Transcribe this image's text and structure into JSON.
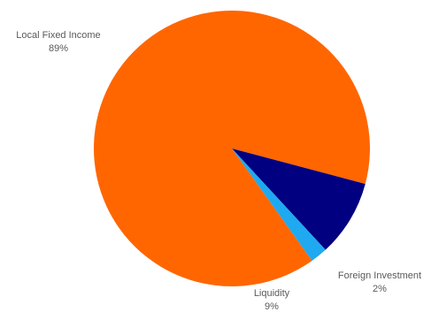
{
  "chart_data": {
    "type": "pie",
    "title": "",
    "slices": [
      {
        "label": "Local Fixed Income",
        "value": 89,
        "value_label": "89%",
        "color": "#FF6600"
      },
      {
        "label": "Liquidity",
        "value": 9,
        "value_label": "9%",
        "color": "#000080"
      },
      {
        "label": "Foreign Investment",
        "value": 2,
        "value_label": "2%",
        "color": "#1FA9F0"
      }
    ],
    "start": "clockwise from bottom-center of first slice's end",
    "legend": "none",
    "data_labels": "outside, category name and percentage"
  }
}
